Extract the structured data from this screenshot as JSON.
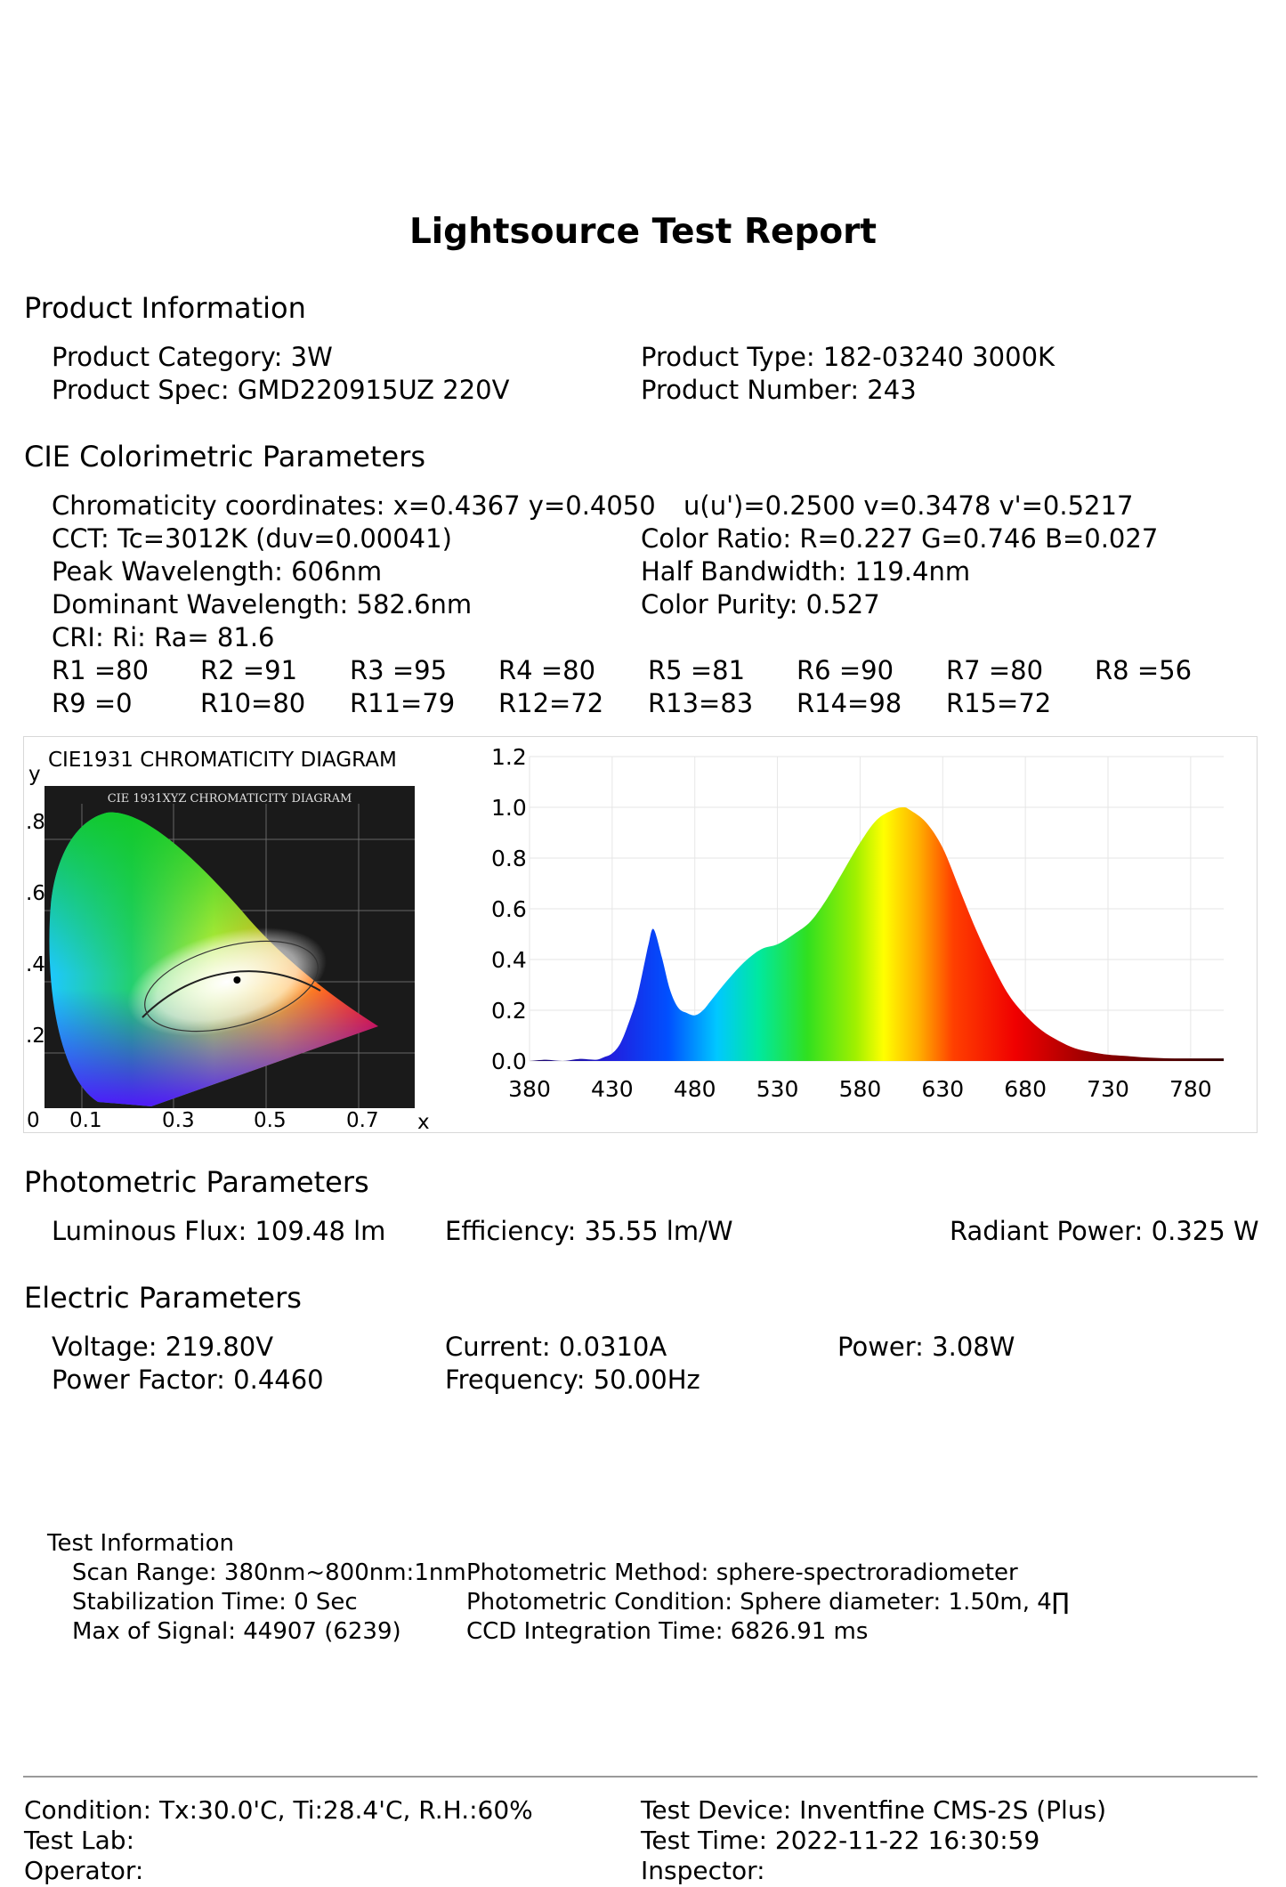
{
  "title": "Lightsource Test Report",
  "product_info": {
    "heading": "Product Information",
    "category": "Product Category: 3W",
    "spec": "Product Spec: GMD220915UZ 220V",
    "type": "Product Type: 182-03240 3000K",
    "number": "Product Number: 243"
  },
  "cie": {
    "heading": "CIE Colorimetric Parameters",
    "chromaticity": "Chromaticity coordinates: x=0.4367 y=0.4050",
    "uv": "u(u')=0.2500 v=0.3478 v'=0.5217",
    "cct": "CCT: Tc=3012K (duv=0.00041)",
    "color_ratio": "Color Ratio: R=0.227  G=0.746  B=0.027",
    "peak": "Peak Wavelength: 606nm",
    "half_bw": "Half Bandwidth: 119.4nm",
    "dominant": "Dominant Wavelength: 582.6nm",
    "purity": "Color Purity: 0.527",
    "cri": "CRI: Ri: Ra= 81.6",
    "r_row1": [
      "R1 =80",
      "R2 =91",
      "R3 =95",
      "R4 =80",
      "R5 =81",
      "R6 =90",
      "R7 =80",
      "R8 =56"
    ],
    "r_row2": [
      "R9 =0",
      "R10=80",
      "R11=79",
      "R12=72",
      "R13=83",
      "R14=98",
      "R15=72"
    ]
  },
  "cie_diagram": {
    "caption": "CIE1931 CHROMATICITY DIAGRAM",
    "inner_title": "CIE 1931XYZ CHROMATICITY DIAGRAM",
    "y_axis": "y",
    "x_axis": "x",
    "y_ticks": [
      ".8",
      ".6",
      ".4",
      ".2"
    ],
    "x_ticks": [
      "0",
      "0.1",
      "0.3",
      "0.5",
      "0.7"
    ],
    "point": {
      "x": 0.4367,
      "y": 0.405
    }
  },
  "chart_data": {
    "type": "area",
    "title": "",
    "xlabel": "",
    "ylabel": "",
    "xlim": [
      380,
      800
    ],
    "ylim": [
      0,
      1.2
    ],
    "y_ticks": [
      "1.2",
      "1.0",
      "0.8",
      "0.6",
      "0.4",
      "0.2",
      "0.0"
    ],
    "x_ticks": [
      "380",
      "430",
      "480",
      "530",
      "580",
      "630",
      "680",
      "730",
      "780"
    ],
    "grid": true,
    "x": [
      380,
      390,
      400,
      410,
      420,
      425,
      430,
      435,
      440,
      445,
      450,
      452,
      455,
      460,
      465,
      470,
      475,
      480,
      485,
      490,
      500,
      510,
      520,
      530,
      540,
      550,
      560,
      570,
      580,
      590,
      600,
      606,
      610,
      620,
      630,
      640,
      650,
      660,
      670,
      680,
      690,
      700,
      710,
      720,
      730,
      740,
      750,
      760,
      770,
      780,
      790,
      800
    ],
    "values": [
      0.0,
      0.005,
      0.0,
      0.008,
      0.005,
      0.015,
      0.03,
      0.07,
      0.15,
      0.25,
      0.4,
      0.46,
      0.52,
      0.41,
      0.28,
      0.21,
      0.19,
      0.18,
      0.2,
      0.24,
      0.32,
      0.39,
      0.44,
      0.46,
      0.5,
      0.55,
      0.64,
      0.75,
      0.86,
      0.95,
      0.99,
      1.0,
      0.99,
      0.94,
      0.84,
      0.68,
      0.52,
      0.38,
      0.26,
      0.18,
      0.12,
      0.08,
      0.05,
      0.035,
      0.025,
      0.02,
      0.015,
      0.012,
      0.01,
      0.01,
      0.01,
      0.01
    ]
  },
  "photometric": {
    "heading": "Photometric Parameters",
    "flux": "Luminous Flux: 109.48 lm",
    "efficiency": "Efficiency: 35.55 lm/W",
    "radiant": "Radiant Power: 0.325 W"
  },
  "electric": {
    "heading": "Electric Parameters",
    "voltage": "Voltage: 219.80V",
    "current": "Current: 0.0310A",
    "power": "Power: 3.08W",
    "pf": "Power Factor: 0.4460",
    "frequency": "Frequency: 50.00Hz"
  },
  "test_info": {
    "heading": "Test Information",
    "scan": "Scan Range: 380nm~800nm:1nm",
    "stab": "Stabilization Time: 0 Sec",
    "max_signal": "Max of Signal: 44907 (6239)",
    "method": "Photometric Method: sphere-spectroradiometer",
    "condition": "Photometric Condition: Sphere diameter: 1.50m, 4∏",
    "ccd": "CCD Integration Time: 6826.91 ms"
  },
  "footer": {
    "condition": "Condition: Tx:30.0'C, Ti:28.4'C, R.H.:60%",
    "lab": "Test Lab:",
    "operator": "Operator:",
    "device": "Test Device: Inventfine CMS-2S (Plus)",
    "time": "Test Time: 2022-11-22 16:30:59",
    "inspector": "Inspector:"
  }
}
